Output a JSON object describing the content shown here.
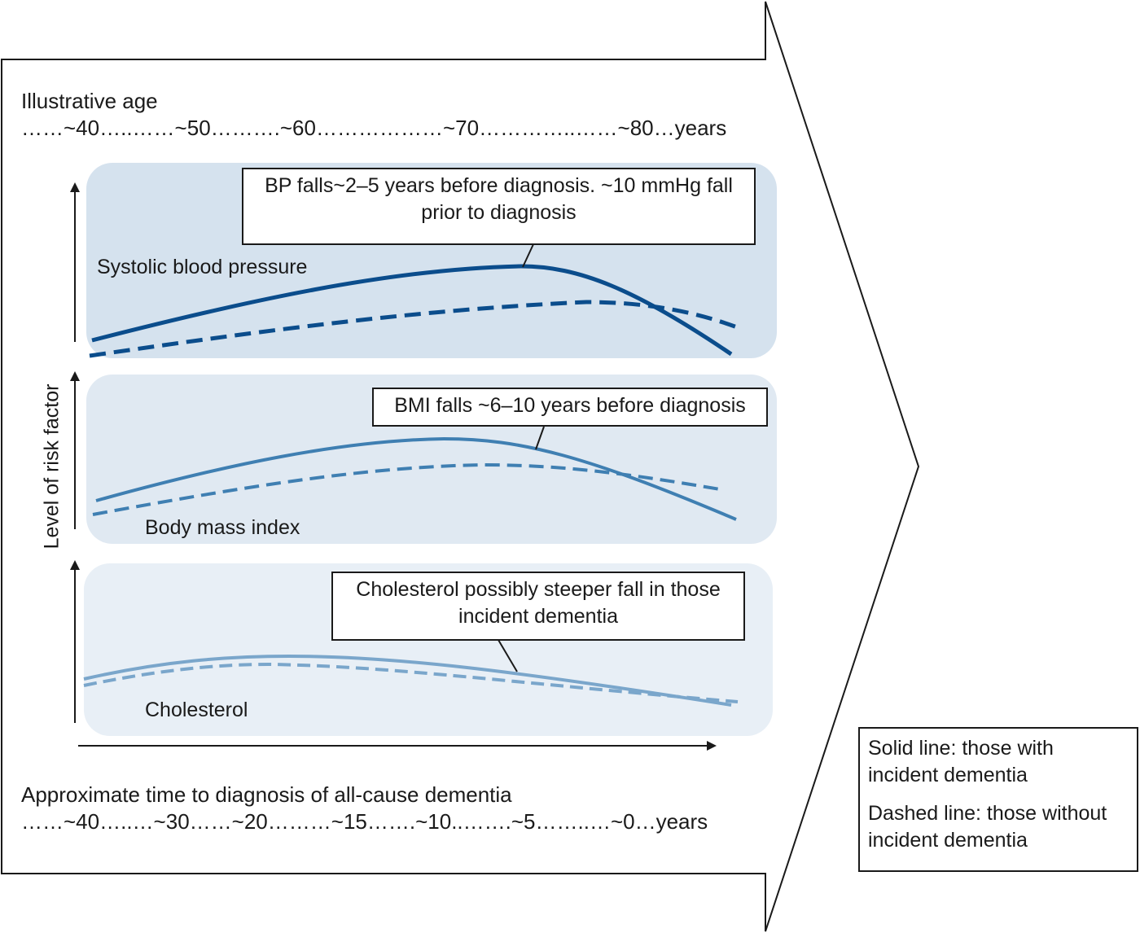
{
  "header": {
    "age_label": "Illustrative age",
    "age_scale": "……~40…..……~50……….~60………………~70…………..……~80…years"
  },
  "footer": {
    "time_label": "Approximate time to diagnosis of all-cause dementia",
    "time_scale": "……~40…..…~30……~20………~15…….~10..…….~5……..…~0…years"
  },
  "y_axis_label": "Level of risk factor",
  "colors": {
    "bp": "#0b4d8c",
    "bmi": "#3f7fb2",
    "chol": "#7aa6cb",
    "panel_bp": "#d5e2ee",
    "panel_bmi": "#e0e9f2",
    "panel_chol": "#e8eff6"
  },
  "panels": [
    {
      "title": "Systolic blood pressure",
      "callout": "BP falls~2–5 years before diagnosis. ~10 mmHg fall prior to diagnosis"
    },
    {
      "title": "Body mass index",
      "callout": "BMI falls ~6–10 years before diagnosis"
    },
    {
      "title": "Cholesterol",
      "callout": "Cholesterol possibly steeper fall in those incident dementia"
    }
  ],
  "legend": {
    "solid": "Solid line: those with incident dementia",
    "dashed": "Dashed line: those without incident dementia"
  }
}
